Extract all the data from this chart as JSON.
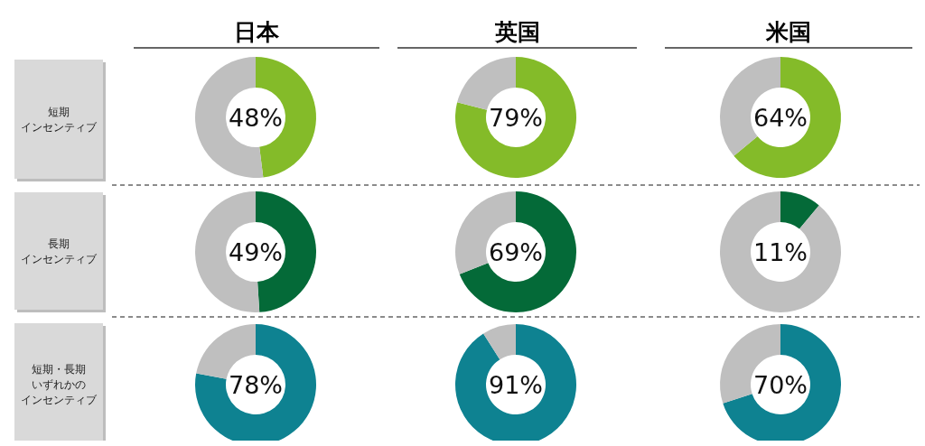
{
  "chart_data": [
    {
      "type": "donut",
      "title": "日本",
      "annotations": [
        "48%",
        "短期",
        "インセンティブ"
      ],
      "categories": [
        null,
        null
      ],
      "values": [
        48,
        52
      ],
      "colors": [
        "#84bb29",
        "#bfbfbf"
      ]
    },
    {
      "type": "donut",
      "title": "英国",
      "annotations": [
        "79%"
      ],
      "categories": [
        null,
        null
      ],
      "values": [
        79,
        21
      ],
      "colors": [
        "#84bb29",
        "#bfbfbf"
      ]
    },
    {
      "type": "donut",
      "title": "米国",
      "annotations": [
        "64%"
      ],
      "categories": [
        null,
        null
      ],
      "values": [
        64,
        36
      ],
      "colors": [
        "#84bb29",
        "#bfbfbf"
      ]
    },
    {
      "type": "donut",
      "annotations": [
        "49%",
        "長期",
        "インセンティブ"
      ],
      "categories": [
        null,
        null
      ],
      "values": [
        49,
        51
      ],
      "colors": [
        "#046a38",
        "#bfbfbf"
      ]
    },
    {
      "type": "donut",
      "annotations": [
        "69%"
      ],
      "categories": [
        null,
        null
      ],
      "values": [
        69,
        31
      ],
      "colors": [
        "#046a38",
        "#bfbfbf"
      ]
    },
    {
      "type": "donut",
      "annotations": [
        "11%"
      ],
      "categories": [
        null,
        null
      ],
      "values": [
        11,
        89
      ],
      "colors": [
        "#046a38",
        "#bfbfbf"
      ]
    },
    {
      "type": "donut",
      "annotations": [
        "78%",
        "短期・長期",
        "いずれかの",
        "インセンティブ"
      ],
      "categories": [
        null,
        null
      ],
      "values": [
        78,
        22
      ],
      "colors": [
        "#0e8291",
        "#bfbfbf"
      ]
    },
    {
      "type": "donut",
      "annotations": [
        "91%"
      ],
      "categories": [
        null,
        null
      ],
      "values": [
        91,
        9
      ],
      "colors": [
        "#0e8291",
        "#bfbfbf"
      ]
    },
    {
      "type": "donut",
      "annotations": [
        "70%"
      ],
      "categories": [
        null,
        null
      ],
      "values": [
        70,
        30
      ],
      "colors": [
        "#0e8291",
        "#bfbfbf"
      ]
    }
  ]
}
